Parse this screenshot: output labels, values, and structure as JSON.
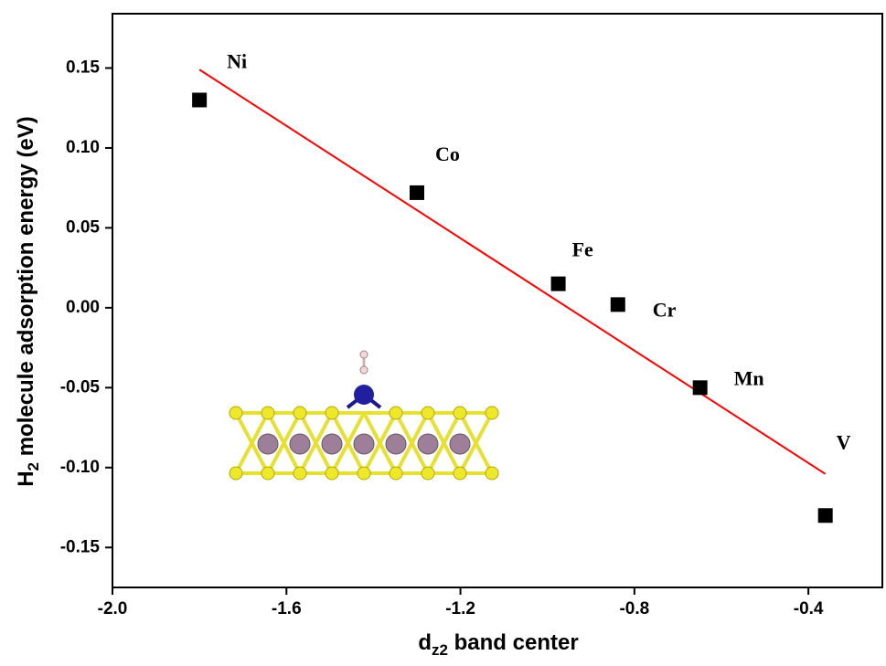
{
  "chart_data": {
    "type": "scatter",
    "x": [
      -1.8,
      -1.3,
      -0.975,
      -0.838,
      -0.649,
      -0.361
    ],
    "values": [
      0.13,
      0.072,
      0.015,
      0.002,
      -0.05,
      -0.13
    ],
    "labels": [
      "Ni",
      "Co",
      "Fe",
      "Cr",
      "Mn",
      "V"
    ],
    "color": "#000000",
    "fit": {
      "x": [
        -1.8,
        -0.361
      ],
      "values": [
        0.149,
        -0.104
      ],
      "color": "#ff0000"
    },
    "xlabel": {
      "main": "d",
      "sub": "z2",
      "rest": " band center"
    },
    "ylabel": {
      "main": "H",
      "sub": "2",
      "rest": " molecule adsorption  energy (eV)"
    },
    "xlim": [
      -2.0,
      -0.23
    ],
    "ylim": [
      -0.175,
      0.184
    ],
    "xticks": [
      {
        "value": -2.0,
        "label": "-2.0"
      },
      -1.6,
      -1.2,
      -0.8,
      -0.4
    ],
    "yticks": [
      -0.15,
      {
        "value": -0.1,
        "label": "-0.10"
      },
      -0.05,
      {
        "value": 0.0,
        "label": "0.00"
      },
      0.05,
      {
        "value": 0.1,
        "label": "0.10"
      },
      0.15
    ]
  }
}
